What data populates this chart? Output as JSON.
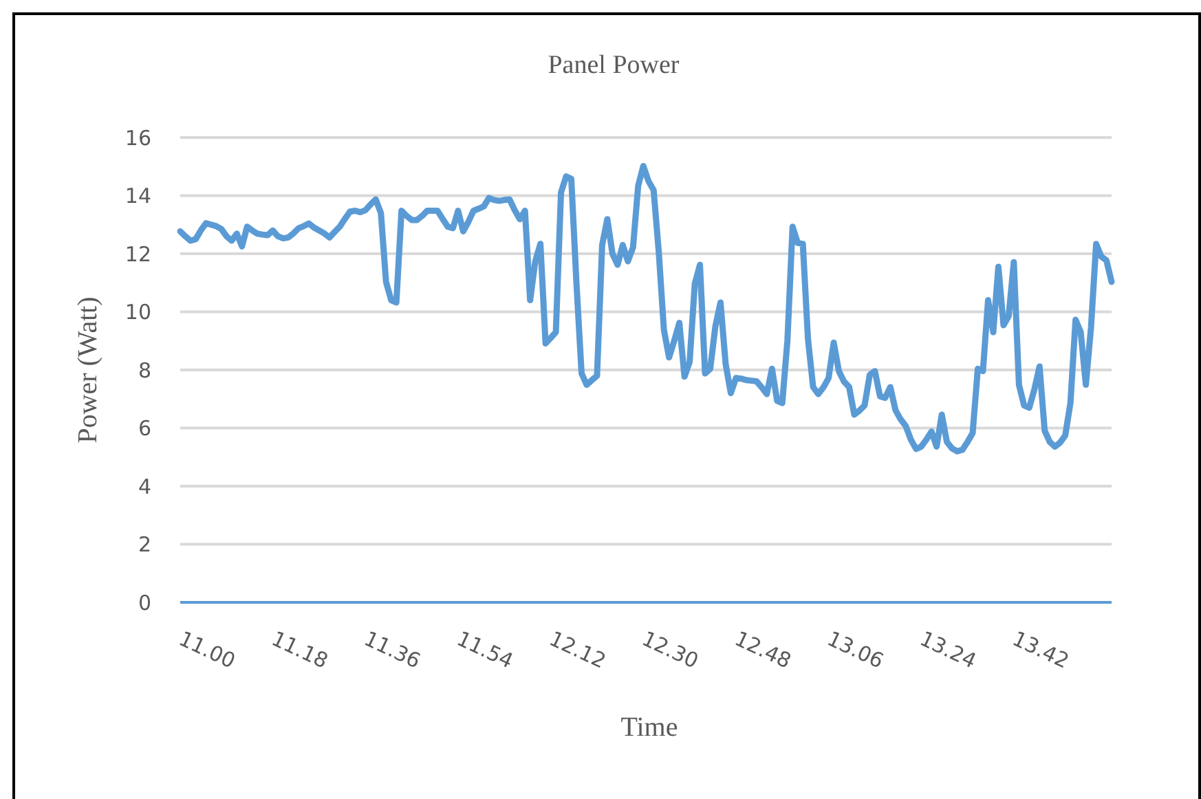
{
  "chart_data": {
    "type": "line",
    "title": "Panel Power",
    "xlabel": "Time",
    "ylabel": "Power (Watt)",
    "categories": [
      "11.00",
      null,
      null,
      null,
      null,
      null,
      null,
      null,
      null,
      null,
      null,
      null,
      null,
      null,
      null,
      null,
      null,
      null,
      "11.18",
      null,
      null,
      null,
      null,
      null,
      null,
      null,
      null,
      null,
      null,
      null,
      null,
      null,
      null,
      null,
      null,
      null,
      "11.36",
      null,
      null,
      null,
      null,
      null,
      null,
      null,
      null,
      null,
      null,
      null,
      null,
      null,
      null,
      null,
      null,
      null,
      "11.54",
      null,
      null,
      null,
      null,
      null,
      null,
      null,
      null,
      null,
      null,
      null,
      null,
      null,
      null,
      null,
      null,
      null,
      "12.12",
      null,
      null,
      null,
      null,
      null,
      null,
      null,
      null,
      null,
      null,
      null,
      null,
      null,
      null,
      null,
      null,
      null,
      "12.30",
      null,
      null,
      null,
      null,
      null,
      null,
      null,
      null,
      null,
      null,
      null,
      null,
      null,
      null,
      null,
      null,
      null,
      "12.48",
      null,
      null,
      null,
      null,
      null,
      null,
      null,
      null,
      null,
      null,
      null,
      null,
      null,
      null,
      null,
      null,
      null,
      "13.06",
      null,
      null,
      null,
      null,
      null,
      null,
      null,
      null,
      null,
      null,
      null,
      null,
      null,
      null,
      null,
      null,
      null,
      "13.24",
      null,
      null,
      null,
      null,
      null,
      null,
      null,
      null,
      null,
      null,
      null,
      null,
      null,
      null,
      null,
      null,
      null,
      "13.42",
      null,
      null,
      null,
      null,
      null,
      null,
      null,
      null,
      null,
      null,
      null,
      null,
      null,
      null,
      null,
      null,
      null,
      null,
      null
    ],
    "ylim": [
      0,
      16
    ],
    "yticks": [
      0,
      2,
      4,
      6,
      8,
      10,
      12,
      14,
      16
    ],
    "grid": "y",
    "legend": false,
    "marker": "none",
    "line_style": "solid",
    "series": [
      {
        "color": "#5b9bd5",
        "values": [
          12.77,
          12.6,
          12.45,
          12.5,
          12.8,
          13.05,
          13.0,
          12.95,
          12.85,
          12.6,
          12.45,
          12.69,
          12.25,
          12.93,
          12.8,
          12.69,
          12.66,
          12.64,
          12.8,
          12.6,
          12.53,
          12.56,
          12.7,
          12.88,
          12.95,
          13.04,
          12.9,
          12.8,
          12.7,
          12.56,
          12.75,
          12.93,
          13.2,
          13.45,
          13.48,
          13.43,
          13.5,
          13.7,
          13.87,
          13.4,
          11.03,
          10.4,
          10.32,
          13.48,
          13.3,
          13.16,
          13.16,
          13.3,
          13.48,
          13.48,
          13.48,
          13.2,
          12.93,
          12.88,
          13.48,
          12.77,
          13.1,
          13.48,
          13.55,
          13.63,
          13.92,
          13.85,
          13.82,
          13.85,
          13.87,
          13.5,
          13.19,
          13.48,
          10.4,
          11.74,
          12.34,
          8.91,
          9.1,
          9.3,
          14.11,
          14.66,
          14.58,
          11.0,
          7.88,
          7.49,
          7.65,
          7.8,
          12.3,
          13.19,
          12.0,
          11.62,
          12.3,
          11.74,
          12.22,
          14.34,
          15.02,
          14.5,
          14.19,
          12.06,
          9.38,
          8.43,
          9.0,
          9.62,
          7.77,
          8.28,
          10.96,
          11.62,
          7.88,
          8.04,
          9.5,
          10.32,
          8.2,
          7.2,
          7.72,
          7.7,
          7.65,
          7.63,
          7.61,
          7.4,
          7.17,
          8.04,
          6.94,
          6.86,
          9.0,
          12.93,
          12.37,
          12.34,
          9.06,
          7.41,
          7.17,
          7.4,
          7.72,
          8.94,
          7.96,
          7.6,
          7.41,
          6.46,
          6.6,
          6.78,
          7.83,
          7.96,
          7.09,
          7.04,
          7.41,
          6.62,
          6.3,
          6.07,
          5.6,
          5.28,
          5.36,
          5.6,
          5.88,
          5.36,
          6.46,
          5.52,
          5.3,
          5.2,
          5.25,
          5.52,
          5.83,
          8.04,
          7.96,
          10.4,
          9.3,
          11.55,
          9.54,
          9.85,
          11.71,
          7.49,
          6.78,
          6.7,
          7.33,
          8.12,
          5.91,
          5.52,
          5.36,
          5.5,
          5.75,
          6.86,
          9.73,
          9.3,
          7.49,
          9.46,
          12.34,
          11.9,
          11.77,
          11.03
        ]
      }
    ]
  }
}
